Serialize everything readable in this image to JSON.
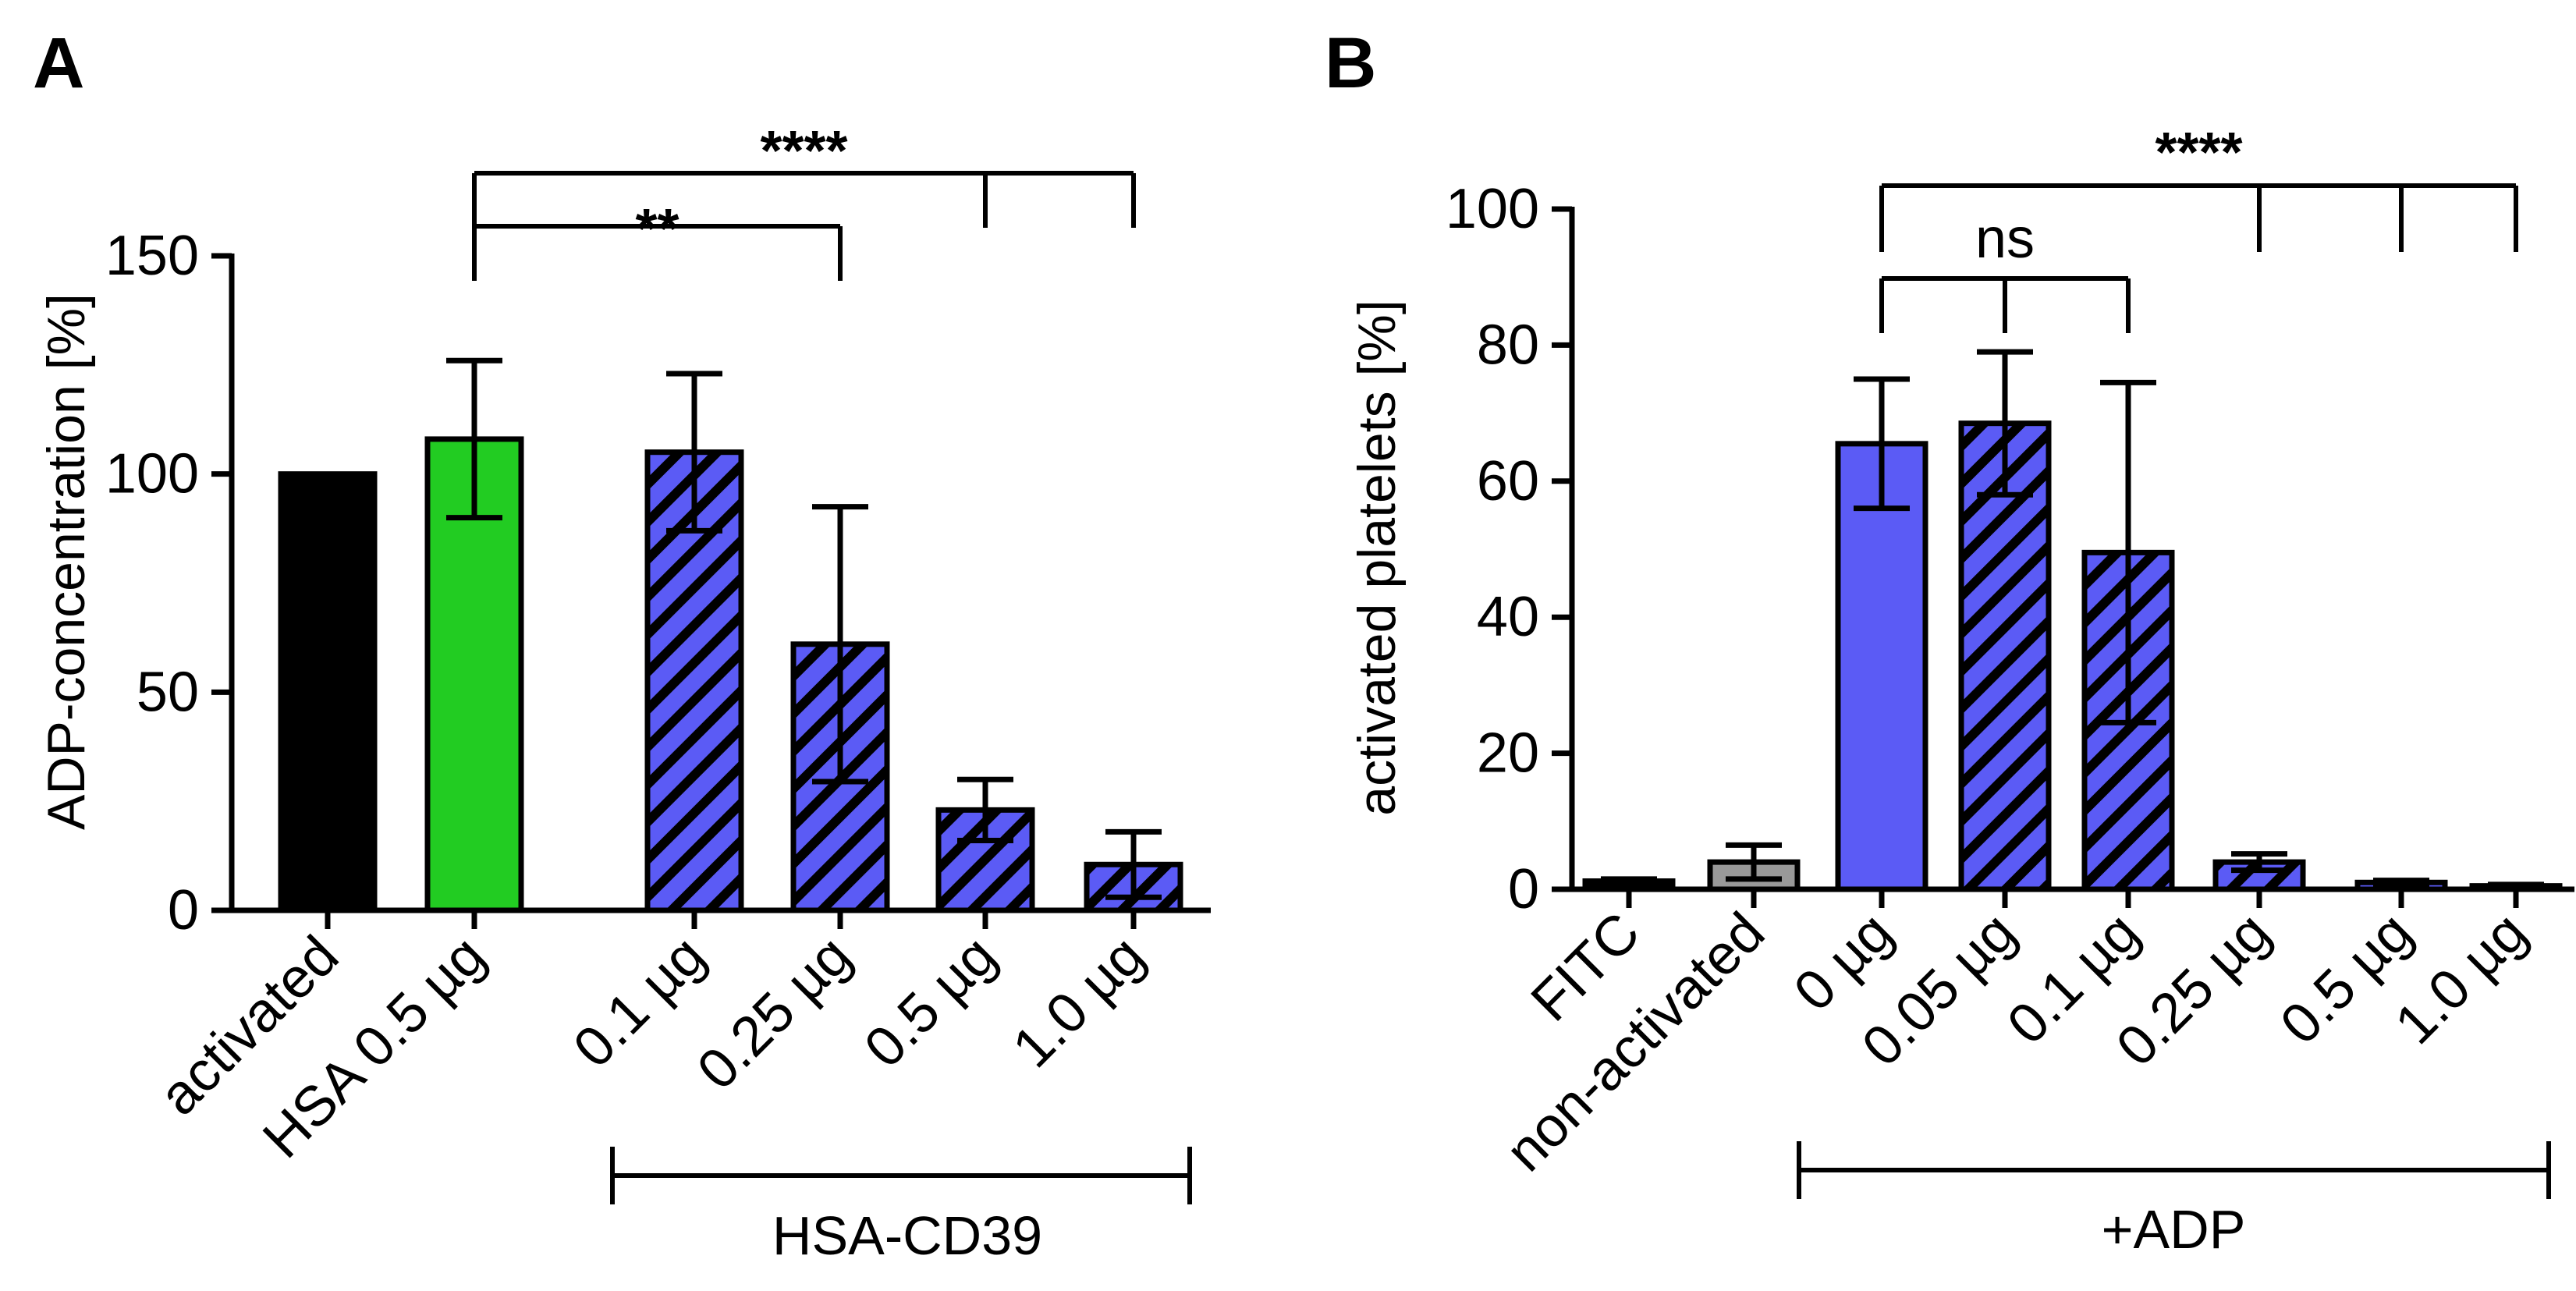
{
  "colors": {
    "black": "#000000",
    "green": "#22cc22",
    "blue": "#5b5bf5",
    "gray": "#999999",
    "white": "#ffffff"
  },
  "chart_data": [
    {
      "type": "bar",
      "panel_label": "A",
      "ylabel": "ADP-concentration [%]",
      "xlabel": "",
      "ylim": [
        0,
        150
      ],
      "yticks": [
        0,
        50,
        100,
        150
      ],
      "ytick_labels": [
        "0",
        "50",
        "100",
        "150"
      ],
      "categories": [
        "activated",
        "HSA 0.5 µg",
        "0.1 µg",
        "0.25 µg",
        "0.5 µg",
        "1.0 µg"
      ],
      "values": [
        100,
        108,
        105,
        61,
        23,
        10.5
      ],
      "errors": [
        0,
        18,
        18,
        31.5,
        7,
        7.5
      ],
      "fill_colors": [
        "#000000",
        "#22cc22",
        "#5b5bf5",
        "#5b5bf5",
        "#5b5bf5",
        "#5b5bf5"
      ],
      "hatched": [
        false,
        false,
        true,
        true,
        true,
        true
      ],
      "group_label": "HSA-CD39",
      "group_start_index": 2,
      "group_end_index": 5,
      "significance": [
        {
          "label": "**",
          "from": 1,
          "to": [
            3
          ]
        },
        {
          "label": "****",
          "from": 1,
          "to": [
            4,
            5
          ]
        }
      ]
    },
    {
      "type": "bar",
      "panel_label": "B",
      "ylabel": "activated platelets [%]",
      "xlabel": "",
      "ylim": [
        0,
        100
      ],
      "yticks": [
        0,
        20,
        40,
        60,
        80,
        100
      ],
      "ytick_labels": [
        "0",
        "20",
        "40",
        "60",
        "80",
        "100"
      ],
      "categories": [
        "FITC",
        "non-activated",
        "0 µg",
        "0.05 µg",
        "0.1 µg",
        "0.25 µg",
        "0.5 µg",
        "1.0 µg"
      ],
      "values": [
        1.2,
        4,
        65.5,
        68.5,
        49.5,
        4,
        1,
        0.5
      ],
      "errors": [
        0.3,
        2.5,
        9.5,
        10.5,
        25,
        1.2,
        0.3,
        0.2
      ],
      "fill_colors": [
        "#000000",
        "#999999",
        "#5b5bf5",
        "#5b5bf5",
        "#5b5bf5",
        "#5b5bf5",
        "#5b5bf5",
        "#5b5bf5"
      ],
      "hatched": [
        false,
        false,
        false,
        true,
        true,
        true,
        true,
        true
      ],
      "group_label": "+ADP",
      "group_start_index": 2,
      "group_end_index": 7,
      "significance": [
        {
          "label": "ns",
          "from": 2,
          "to": [
            3,
            4
          ]
        },
        {
          "label": "****",
          "from": 2,
          "to": [
            5,
            6,
            7
          ]
        }
      ]
    }
  ]
}
